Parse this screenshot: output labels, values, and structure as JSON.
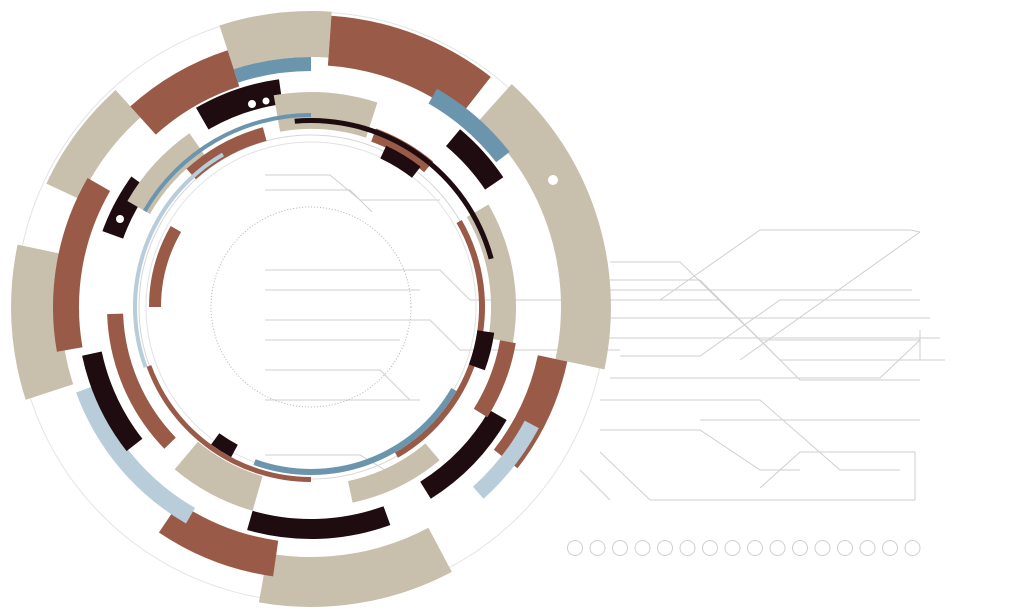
{
  "illustration": {
    "subject": "tech-ring-with-circuit-lines",
    "palette": {
      "beige": "#c9bfad",
      "rust": "#9a5a48",
      "dark": "#1e0c10",
      "blue": "#6b95ad",
      "light_blue": "#b8ccd9",
      "line_gray": "#c8c8c8",
      "background": "#ffffff"
    },
    "dot_row_count": 16
  }
}
